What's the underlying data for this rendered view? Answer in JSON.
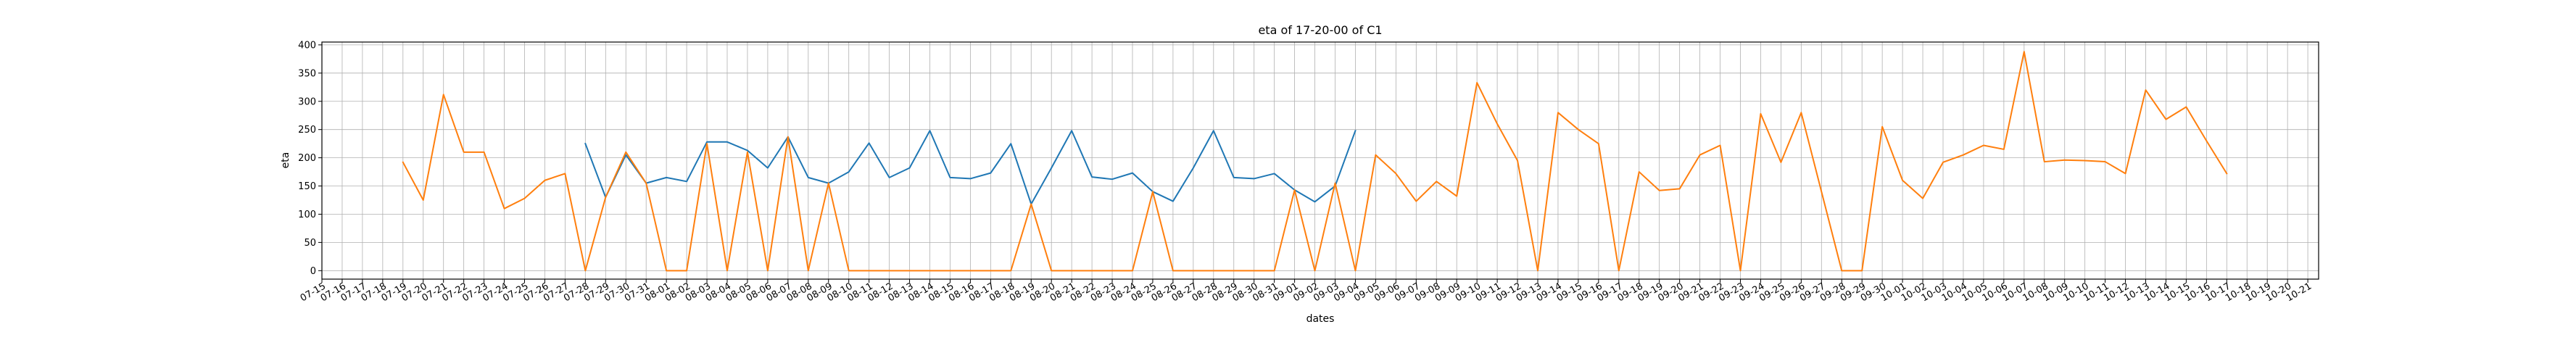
{
  "chart_data": {
    "type": "line",
    "title": "eta of 17-20-00 of C1",
    "xlabel": "dates",
    "ylabel": "eta",
    "ylim": [
      -15,
      405
    ],
    "yticks": [
      0,
      50,
      100,
      150,
      200,
      250,
      300,
      350,
      400
    ],
    "grid": true,
    "x": [
      "07-15",
      "07-16",
      "07-17",
      "07-18",
      "07-19",
      "07-20",
      "07-21",
      "07-22",
      "07-23",
      "07-24",
      "07-25",
      "07-26",
      "07-27",
      "07-28",
      "07-29",
      "07-30",
      "07-31",
      "08-01",
      "08-02",
      "08-03",
      "08-04",
      "08-05",
      "08-06",
      "08-07",
      "08-08",
      "08-09",
      "08-10",
      "08-11",
      "08-12",
      "08-13",
      "08-14",
      "08-15",
      "08-16",
      "08-17",
      "08-18",
      "08-19",
      "08-20",
      "08-21",
      "08-22",
      "08-23",
      "08-24",
      "08-25",
      "08-26",
      "08-27",
      "08-28",
      "08-29",
      "08-30",
      "08-31",
      "09-01",
      "09-02",
      "09-03",
      "09-04",
      "09-05",
      "09-06",
      "09-07",
      "09-08",
      "09-09",
      "09-10",
      "09-11",
      "09-12",
      "09-13",
      "09-14",
      "09-15",
      "09-16",
      "09-17",
      "09-18",
      "09-19",
      "09-20",
      "09-21",
      "09-22",
      "09-23",
      "09-24",
      "09-25",
      "09-26",
      "09-27",
      "09-28",
      "09-29",
      "09-30",
      "10-01",
      "10-02",
      "10-03",
      "10-04",
      "10-05",
      "10-06",
      "10-07",
      "10-08",
      "10-09",
      "10-10",
      "10-11",
      "10-12",
      "10-13",
      "10-14",
      "10-15",
      "10-16",
      "10-17",
      "10-18",
      "10-19",
      "10-20",
      "10-21"
    ],
    "series": [
      {
        "color": "#1f77b4",
        "values": [
          null,
          null,
          null,
          null,
          null,
          null,
          null,
          null,
          null,
          null,
          null,
          null,
          null,
          225,
          130,
          205,
          155,
          165,
          158,
          228,
          228,
          213,
          182,
          237,
          165,
          155,
          175,
          226,
          165,
          182,
          248,
          165,
          163,
          173,
          225,
          118,
          182,
          248,
          166,
          162,
          173,
          140,
          123,
          182,
          248,
          165,
          163,
          172,
          143,
          122,
          150,
          248,
          null,
          null,
          null,
          null,
          null,
          null,
          null,
          null,
          null,
          null,
          null,
          null,
          null,
          null,
          null,
          null,
          null,
          null,
          null,
          null,
          null,
          null,
          null,
          null,
          null,
          null,
          null,
          null,
          null,
          null,
          null,
          null,
          null,
          null,
          null,
          null,
          null,
          null,
          null,
          null,
          null,
          null,
          null,
          null,
          null,
          null,
          null
        ]
      },
      {
        "color": "#ff7f0e",
        "values": [
          null,
          null,
          null,
          null,
          192,
          125,
          312,
          210,
          210,
          110,
          128,
          160,
          172,
          0,
          130,
          210,
          155,
          0,
          0,
          225,
          0,
          210,
          0,
          237,
          0,
          155,
          0,
          0,
          0,
          0,
          0,
          0,
          0,
          0,
          0,
          118,
          0,
          0,
          0,
          0,
          0,
          140,
          0,
          0,
          0,
          0,
          0,
          0,
          143,
          0,
          155,
          0,
          205,
          172,
          123,
          158,
          132,
          333,
          260,
          195,
          0,
          280,
          250,
          225,
          0,
          175,
          142,
          145,
          205,
          222,
          0,
          278,
          192,
          280,
          140,
          0,
          0,
          255,
          160,
          128,
          192,
          205,
          222,
          215,
          388,
          193,
          196,
          195,
          193,
          172,
          320,
          268,
          290,
          230,
          172,
          null,
          null,
          null,
          null
        ]
      }
    ]
  }
}
